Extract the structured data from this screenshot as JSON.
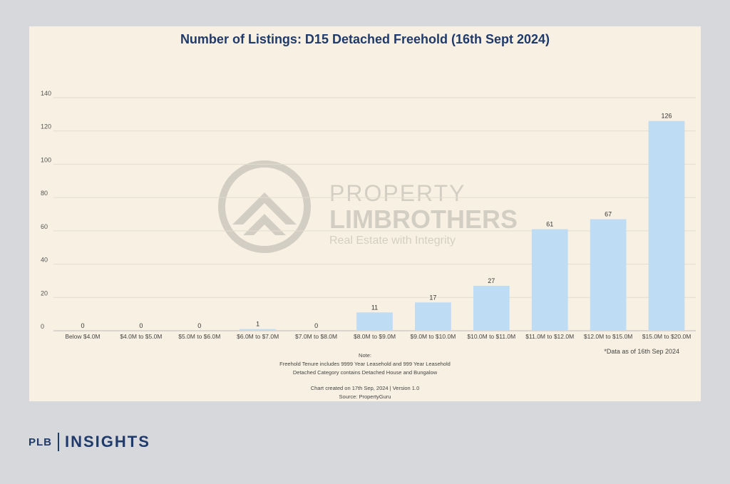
{
  "chart_data": {
    "type": "bar",
    "title": "Number of Listings: D15 Detached Freehold (16th Sept 2024)",
    "categories": [
      "Below $4.0M",
      "$4.0M to $5.0M",
      "$5.0M to $6.0M",
      "$6.0M to $7.0M",
      "$7.0M to $8.0M",
      "$8.0M to $9.0M",
      "$9.0M to $10.0M",
      "$10.0M to $11.0M",
      "$11.0M to $12.0M",
      "$12.0M to $15.0M",
      "$15.0M to $20.0M"
    ],
    "values": [
      0,
      0,
      0,
      1,
      0,
      11,
      17,
      27,
      61,
      67,
      126
    ],
    "ylim": [
      0,
      140
    ],
    "yticks": [
      0,
      20,
      40,
      60,
      80,
      100,
      120,
      140
    ],
    "xlabel": "",
    "ylabel": "",
    "grid": true,
    "bar_color": "#bfdcf5"
  },
  "watermark": {
    "line1": "PROPERTY",
    "line2": "LIMBROTHERS",
    "tagline": "Real Estate with Integrity"
  },
  "data_asof": "*Data as of 16th Sep 2024",
  "notes": {
    "heading": "Note:",
    "line1": "Freehold Tenure includes 9999 Year Leasehold and 999 Year Leasehold",
    "line2": "Detached Category contains Detached House and Bungalow",
    "created": "Chart created on 17th Sep, 2024 | Version 1.0",
    "source": "Source: PropertyGuru"
  },
  "brand": {
    "plb": "PLB",
    "insights": "INSIGHTS"
  }
}
